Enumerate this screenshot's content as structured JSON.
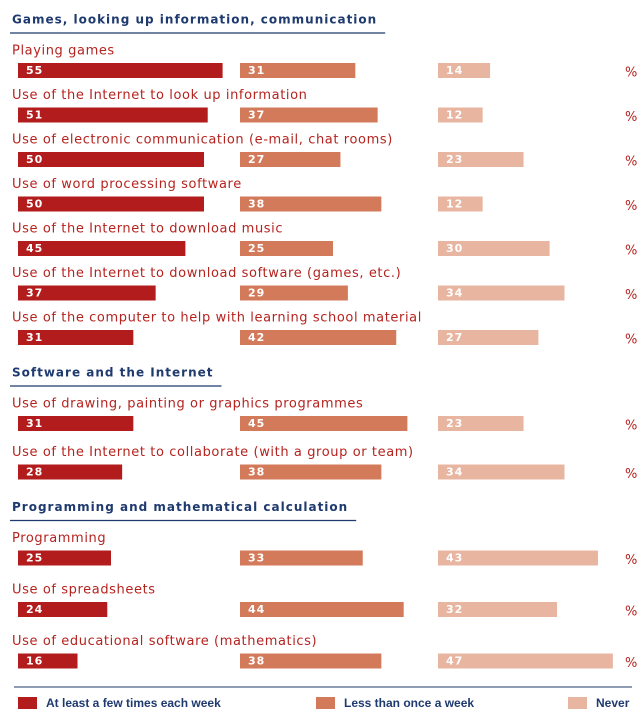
{
  "chart_data": {
    "type": "bar",
    "unit": "%",
    "series": [
      {
        "name": "At least a few times each week",
        "color": "#b31c1c"
      },
      {
        "name": "Less than once a week",
        "color": "#d37a5b"
      },
      {
        "name": "Never",
        "color": "#e8b5a1"
      }
    ],
    "sections": [
      {
        "title": "Games, looking up information, communication",
        "categories": [
          "Playing games",
          "Use of the Internet to look up information",
          "Use of electronic communication (e-mail, chat rooms)",
          "Use of word processing software",
          "Use of the Internet to download music",
          "Use of the Internet to download software (games, etc.)",
          "Use of the computer to help with learning school material"
        ],
        "values": [
          [
            55,
            31,
            14
          ],
          [
            51,
            37,
            12
          ],
          [
            50,
            27,
            23
          ],
          [
            50,
            38,
            12
          ],
          [
            45,
            25,
            30
          ],
          [
            37,
            29,
            34
          ],
          [
            31,
            42,
            27
          ]
        ]
      },
      {
        "title": "Software and the Internet",
        "categories": [
          "Use of drawing, painting or graphics programmes",
          "Use of the Internet to collaborate (with a group or team)"
        ],
        "values": [
          [
            31,
            45,
            23
          ],
          [
            28,
            38,
            34
          ]
        ]
      },
      {
        "title": "Programming and mathematical calculation",
        "categories": [
          "Programming",
          "Use of spreadsheets",
          "Use of educational software (mathematics)"
        ],
        "values": [
          [
            25,
            33,
            43
          ],
          [
            24,
            44,
            32
          ],
          [
            16,
            38,
            47
          ]
        ]
      }
    ]
  }
}
